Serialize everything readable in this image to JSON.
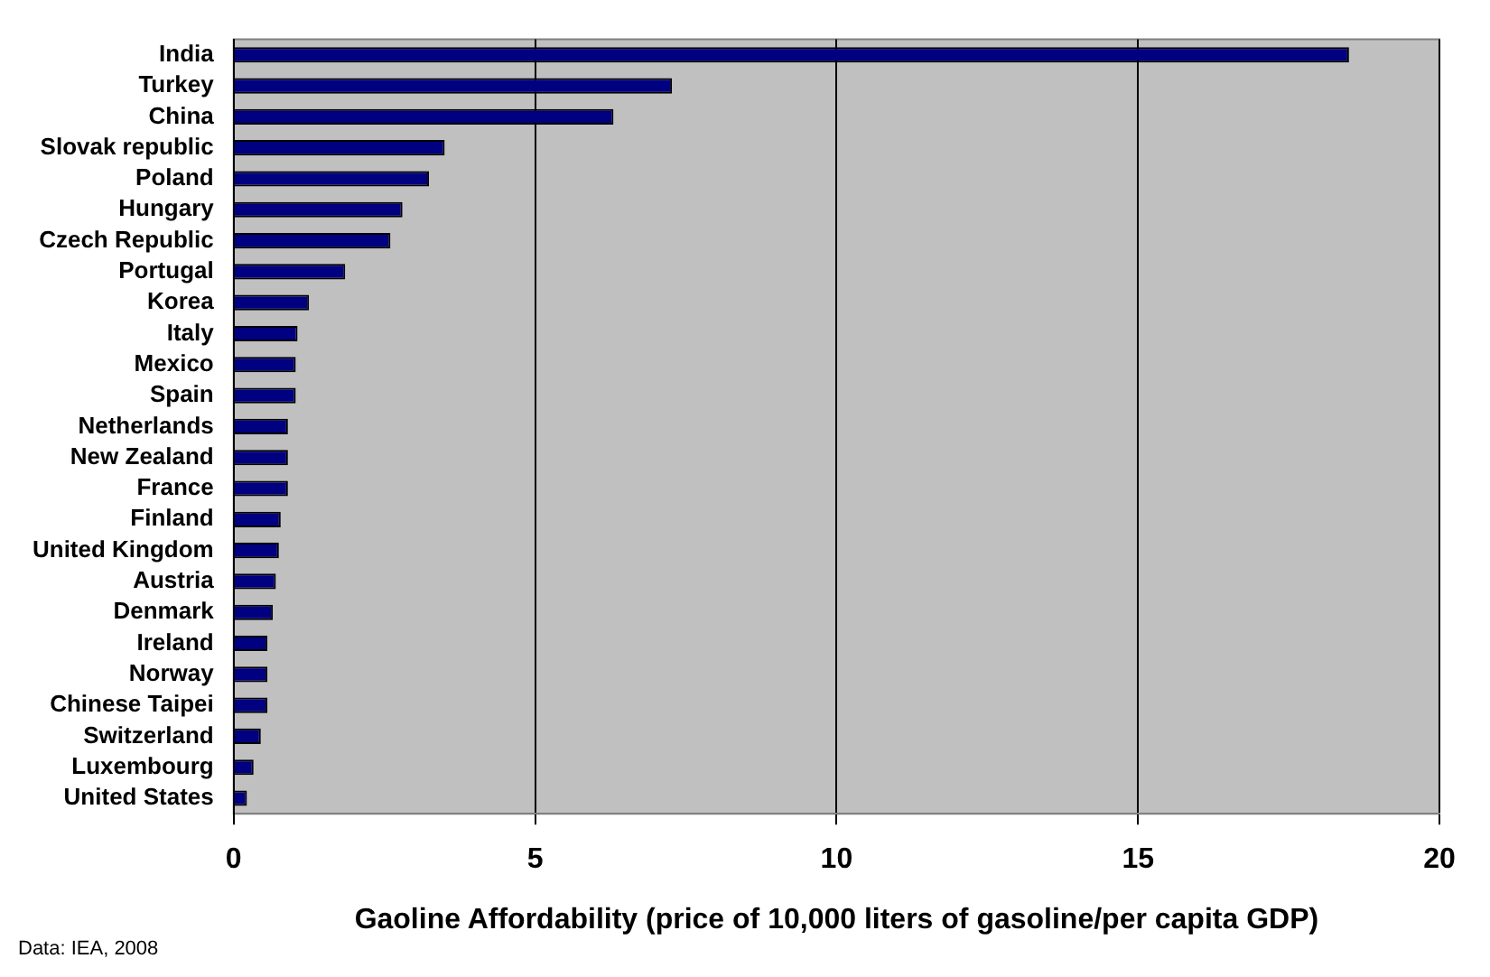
{
  "chart_data": {
    "type": "bar",
    "orientation": "horizontal",
    "categories": [
      "India",
      "Turkey",
      "China",
      "Slovak republic",
      "Poland",
      "Hungary",
      "Czech Republic",
      "Portugal",
      "Korea",
      "Italy",
      "Mexico",
      "Spain",
      "Netherlands",
      "New Zealand",
      "France",
      "Finland",
      "United Kingdom",
      "Austria",
      "Denmark",
      "Ireland",
      "Norway",
      "Chinese Taipei",
      "Switzerland",
      "Luxembourg",
      "United States"
    ],
    "values": [
      18.5,
      7.27,
      6.3,
      3.5,
      3.24,
      2.8,
      2.6,
      1.85,
      1.25,
      1.06,
      1.03,
      1.03,
      0.9,
      0.9,
      0.9,
      0.78,
      0.75,
      0.7,
      0.65,
      0.56,
      0.56,
      0.56,
      0.45,
      0.33,
      0.22
    ],
    "color": "#000080",
    "xlabel": "Gaoline Affordability (price of 10,000 liters of gasoline/per capita GDP)",
    "xlim": [
      0,
      20
    ],
    "xticks": [
      0,
      5,
      10,
      15,
      20
    ],
    "grid": "x",
    "legend": false,
    "annotations": [
      "Data: IEA, 2008"
    ]
  }
}
